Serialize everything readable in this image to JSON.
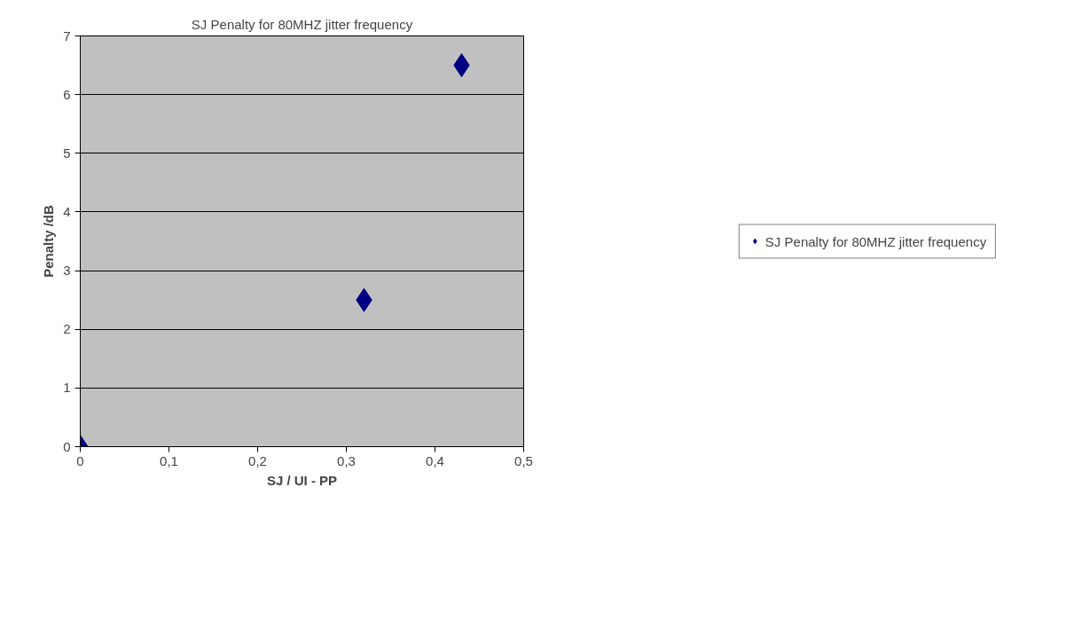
{
  "chart_data": {
    "type": "scatter",
    "title": "SJ Penalty for 80MHZ jitter frequency",
    "xlabel": "SJ / UI - PP",
    "ylabel": "Penalty /dB",
    "x": [
      0,
      0.32,
      0.43
    ],
    "series": [
      {
        "name": "SJ Penalty for 80MHZ jitter frequency",
        "color": "#000080",
        "values": [
          0,
          2.5,
          6.5
        ]
      }
    ],
    "xlim": [
      0,
      0.5
    ],
    "ylim": [
      0,
      7
    ],
    "xticks": [
      0,
      {
        "value": 0.1,
        "label": "0,1"
      },
      {
        "value": 0.2,
        "label": "0,2"
      },
      {
        "value": 0.3,
        "label": "0,3"
      },
      {
        "value": 0.4,
        "label": "0,4"
      },
      {
        "value": 0.5,
        "label": "0,5"
      }
    ],
    "yticks": [
      0,
      1,
      2,
      3,
      4,
      5,
      6,
      7
    ],
    "grid": "y",
    "legend": "right",
    "marker": "diamond"
  }
}
